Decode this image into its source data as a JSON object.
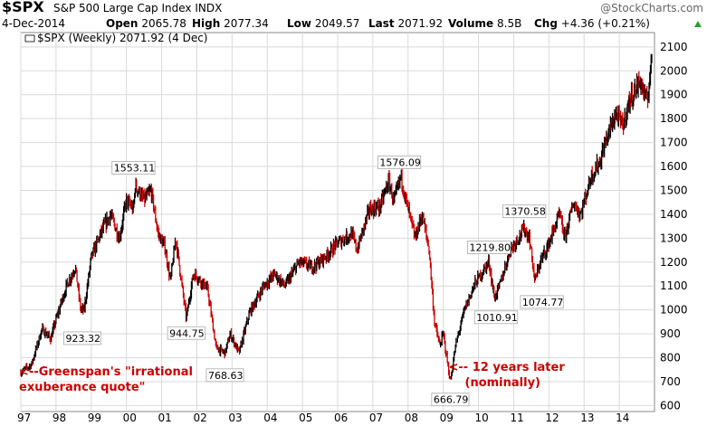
{
  "header": {
    "symbol": "$SPX",
    "name": "S&P 500 Large Cap Index",
    "exchange": "INDX",
    "watermark": "@StockCharts.com",
    "date": "4-Dec-2014",
    "open_label": "Open",
    "open_value": "2065.78",
    "high_label": "High",
    "high_value": "2077.34",
    "low_label": "Low",
    "low_value": "2049.57",
    "last_label": "Last",
    "last_value": "2071.92",
    "volume_label": "Volume",
    "volume_value": "8.5B",
    "chg_label": "Chg",
    "chg_value": "+4.36 (+0.21%)",
    "up_color": "#2a9d2a"
  },
  "legend": {
    "text": "$SPX (Weekly) 2071.92 (4 Dec)"
  },
  "chart_data": {
    "type": "line",
    "style": "weekly price bars (OHLC)",
    "grid": true,
    "x_ticks": [
      "97",
      "98",
      "99",
      "00",
      "01",
      "02",
      "03",
      "04",
      "05",
      "06",
      "07",
      "08",
      "09",
      "10",
      "11",
      "12",
      "13",
      "14"
    ],
    "y_ticks": [
      600,
      700,
      800,
      900,
      1000,
      1100,
      1200,
      1300,
      1400,
      1500,
      1600,
      1700,
      1800,
      1900,
      2000,
      2100
    ],
    "ylim": [
      575,
      2160
    ],
    "xlim": [
      1997.0,
      2015.0
    ],
    "colors": {
      "up": "#000000",
      "down": "#cc0000",
      "annotation": "#cc0000",
      "grid": "#d9d9d9"
    },
    "series": [
      {
        "values": [
          [
            1997.0,
            740
          ],
          [
            1997.3,
            770
          ],
          [
            1997.6,
            920
          ],
          [
            1997.85,
            880
          ],
          [
            1998.0,
            960
          ],
          [
            1998.3,
            1100
          ],
          [
            1998.55,
            1180
          ],
          [
            1998.7,
            1000
          ],
          [
            1998.8,
            1000
          ],
          [
            1999.0,
            1220
          ],
          [
            1999.3,
            1330
          ],
          [
            1999.55,
            1400
          ],
          [
            1999.8,
            1300
          ],
          [
            2000.0,
            1460
          ],
          [
            2000.2,
            1420
          ],
          [
            2000.25,
            1520
          ],
          [
            2000.5,
            1460
          ],
          [
            2000.7,
            1500
          ],
          [
            2000.9,
            1320
          ],
          [
            2001.1,
            1260
          ],
          [
            2001.25,
            1120
          ],
          [
            2001.4,
            1300
          ],
          [
            2001.7,
            965
          ],
          [
            2001.9,
            1150
          ],
          [
            2002.0,
            1140
          ],
          [
            2002.3,
            1090
          ],
          [
            2002.55,
            840
          ],
          [
            2002.8,
            820
          ],
          [
            2002.95,
            900
          ],
          [
            2003.2,
            820
          ],
          [
            2003.5,
            990
          ],
          [
            2003.9,
            1100
          ],
          [
            2004.2,
            1150
          ],
          [
            2004.5,
            1100
          ],
          [
            2004.9,
            1200
          ],
          [
            2005.3,
            1180
          ],
          [
            2005.7,
            1230
          ],
          [
            2006.0,
            1280
          ],
          [
            2006.4,
            1320
          ],
          [
            2006.55,
            1250
          ],
          [
            2006.9,
            1420
          ],
          [
            2007.2,
            1430
          ],
          [
            2007.45,
            1540
          ],
          [
            2007.6,
            1450
          ],
          [
            2007.8,
            1560
          ],
          [
            2007.95,
            1450
          ],
          [
            2008.2,
            1300
          ],
          [
            2008.4,
            1400
          ],
          [
            2008.6,
            1250
          ],
          [
            2008.75,
            950
          ],
          [
            2008.9,
            850
          ],
          [
            2009.0,
            900
          ],
          [
            2009.2,
            700
          ],
          [
            2009.35,
            850
          ],
          [
            2009.6,
            1000
          ],
          [
            2009.9,
            1110
          ],
          [
            2010.3,
            1200
          ],
          [
            2010.45,
            1050
          ],
          [
            2010.6,
            1100
          ],
          [
            2010.9,
            1250
          ],
          [
            2011.3,
            1340
          ],
          [
            2011.45,
            1300
          ],
          [
            2011.6,
            1120
          ],
          [
            2011.75,
            1200
          ],
          [
            2011.95,
            1260
          ],
          [
            2012.3,
            1400
          ],
          [
            2012.45,
            1300
          ],
          [
            2012.7,
            1450
          ],
          [
            2012.9,
            1400
          ],
          [
            2013.2,
            1560
          ],
          [
            2013.45,
            1620
          ],
          [
            2013.6,
            1700
          ],
          [
            2013.9,
            1820
          ],
          [
            2014.1,
            1770
          ],
          [
            2014.3,
            1880
          ],
          [
            2014.6,
            1960
          ],
          [
            2014.75,
            1880
          ],
          [
            2014.8,
            1880
          ],
          [
            2014.93,
            2072
          ]
        ]
      }
    ],
    "annotations": [
      {
        "text": "1553.11",
        "x": 2000.2,
        "y": 1553.11
      },
      {
        "text": "923.32",
        "x": 1998.75,
        "y": 923.32
      },
      {
        "text": "944.75",
        "x": 2001.7,
        "y": 944.75
      },
      {
        "text": "768.63",
        "x": 2002.8,
        "y": 768.63
      },
      {
        "text": "1576.09",
        "x": 2007.75,
        "y": 1576.09
      },
      {
        "text": "666.79",
        "x": 2009.2,
        "y": 666.79
      },
      {
        "text": "1219.80",
        "x": 2010.3,
        "y": 1219.8
      },
      {
        "text": "1010.91",
        "x": 2010.5,
        "y": 1010.91
      },
      {
        "text": "1370.58",
        "x": 2011.3,
        "y": 1370.58
      },
      {
        "text": "1074.77",
        "x": 2011.8,
        "y": 1074.77
      }
    ],
    "notes": [
      {
        "lines": [
          "<--Greenspan's \"irrational",
          "exuberance quote\""
        ],
        "x": 1996.95
      },
      {
        "lines": [
          "<-- 12 years later",
          "(nominally)"
        ],
        "x": 2009.15
      }
    ]
  }
}
